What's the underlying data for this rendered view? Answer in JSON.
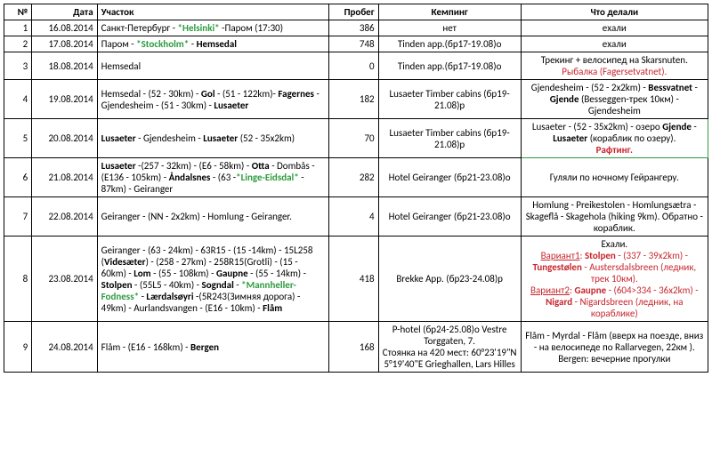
{
  "headers": {
    "num": "№",
    "date": "Дата",
    "section": "Участок",
    "mileage": "Пробег",
    "camping": "Кемпинг",
    "activity": "Что делали"
  },
  "colors": {
    "green": "#2e9b3f",
    "red": "#c7262d",
    "black": "#000000",
    "border": "#000000",
    "highlight_border": "#2e9b3f"
  },
  "rows": [
    {
      "num": "1",
      "date": "16.08.2014",
      "section": [
        {
          "t": "Санкт-Петербург - "
        },
        {
          "t": "*Helsinki*",
          "c": "green",
          "b": true
        },
        {
          "t": " -Паром (17:30)"
        }
      ],
      "mileage": "386",
      "camping": [
        {
          "t": "нет"
        }
      ],
      "activity": [
        {
          "t": "ехали"
        }
      ]
    },
    {
      "num": "2",
      "date": "17.08.2014",
      "section": [
        {
          "t": "Паром - "
        },
        {
          "t": "*Stockholm*",
          "c": "green",
          "b": true
        },
        {
          "t": "  - ",
          "b": false
        },
        {
          "t": "Hemsedal",
          "b": true
        }
      ],
      "mileage": "748",
      "camping": [
        {
          "t": "Tinden app.(бр17-19.08)о"
        }
      ],
      "activity": [
        {
          "t": "ехали"
        }
      ]
    },
    {
      "num": "3",
      "date": "18.08.2014",
      "section": [
        {
          "t": "Hemsedal"
        }
      ],
      "mileage": "0",
      "camping": [
        {
          "t": "Tinden app.(бр17-19.08)о"
        }
      ],
      "activity": [
        {
          "t": "Трекинг + велосипед на Skarsnuten."
        },
        {
          "br": true
        },
        {
          "t": "Рыбалка (Fagersetvatnet).",
          "c": "red"
        }
      ]
    },
    {
      "num": "4",
      "date": "19.08.2014",
      "section": [
        {
          "t": "Hemsedal - (52 - 30km) - "
        },
        {
          "t": "Gol",
          "b": true
        },
        {
          "t": " - (51 - 122km)- "
        },
        {
          "t": "Fagernes",
          "b": true
        },
        {
          "t": " - Gjendesheim - (51 - 30km) - "
        },
        {
          "t": "Lusaeter",
          "b": true
        }
      ],
      "mileage": "182",
      "camping": [
        {
          "t": "Lusaeter Timber cabins (бр19-21.08)р"
        }
      ],
      "activity": [
        {
          "t": "Gjendesheim - (52 - 2x2km) - "
        },
        {
          "t": "Bessvatnet",
          "b": true
        },
        {
          "t": " - "
        },
        {
          "t": "Gjende",
          "b": true
        },
        {
          "t": " (Besseggen-трек 10км) - Gjendesheim"
        }
      ]
    },
    {
      "num": "5",
      "date": "20.08.2014",
      "highlight": true,
      "section": [
        {
          "t": "Lusaeter",
          "b": true
        },
        {
          "t": " - Gjendesheim - "
        },
        {
          "t": "Lusaeter",
          "b": true
        },
        {
          "t": "  (52 - 35x2km)"
        }
      ],
      "mileage": "70",
      "camping": [
        {
          "t": "Lusaeter Timber cabins (бр19-21.08)р"
        }
      ],
      "activity": [
        {
          "t": "Lusaeter - (52 - 35x2km) -  озеро "
        },
        {
          "t": "Gjende",
          "b": true
        },
        {
          "t": " - "
        },
        {
          "t": "Lusaeter",
          "b": true
        },
        {
          "t": " (кораблик по озеру)."
        },
        {
          "br": true
        },
        {
          "t": "Рафтинг.",
          "c": "red",
          "b": true
        }
      ]
    },
    {
      "num": "6",
      "date": "21.08.2014",
      "section": [
        {
          "t": "Lusaeter",
          "b": true
        },
        {
          "t": " -(257 - 32km) - (E6 - 58km) - "
        },
        {
          "t": "Otta",
          "b": true
        },
        {
          "t": " - Dombås - (E136 - 105km) - "
        },
        {
          "t": "Åndalsnes",
          "b": true
        },
        {
          "t": " - (63 -"
        },
        {
          "t": "*Linge-Eidsdal*",
          "c": "green",
          "b": true
        },
        {
          "t": " - 87km) - Geiranger"
        }
      ],
      "mileage": "282",
      "camping": [
        {
          "t": "Hotel Geiranger (бр21-23.08)о"
        }
      ],
      "activity": [
        {
          "t": "Гуляли по ночному Гейрангеру."
        }
      ]
    },
    {
      "num": "7",
      "date": "22.08.2014",
      "section": [
        {
          "t": "Geiranger - (NN - 2x2km) - Homlung - Geiranger."
        }
      ],
      "mileage": "4",
      "camping": [
        {
          "t": "Hotel Geiranger (бр21-23.08)о"
        }
      ],
      "activity": [
        {
          "t": "Homlung - Preikestolen - Homlungsætra -  Skageflå - Skagehola (hiking 9km). Обратно - кораблик."
        }
      ]
    },
    {
      "num": "8",
      "date": "23.08.2014",
      "section": [
        {
          "t": "Geiranger -  (63 - 24km) - 63R15 -  (15 -14km) -  15L258 ("
        },
        {
          "t": "Videsæter",
          "b": true
        },
        {
          "t": ") - (258 - 27km) -  258R15(Grotli) - (15 - 60km) - "
        },
        {
          "t": "Lom",
          "b": true
        },
        {
          "t": "  - (55 - 108km) - "
        },
        {
          "t": "Gaupne",
          "b": true
        },
        {
          "t": " - (55 - 14km) - "
        },
        {
          "t": "Stolpen",
          "b": true
        },
        {
          "t": " - (55L5 - 40km) - "
        },
        {
          "t": "Sogndal",
          "b": true
        },
        {
          "t": " - "
        },
        {
          "t": "*Mannheller-Fodness*",
          "c": "green",
          "b": true
        },
        {
          "t": " - "
        },
        {
          "t": "Lærdalsøyri",
          "b": true
        },
        {
          "t": " -(5R243(Зимняя дорога) - 49km) - Aurlandsvangen - (E16 - 10km) - "
        },
        {
          "t": "Flåm",
          "b": true
        }
      ],
      "mileage": "418",
      "camping": [
        {
          "t": "Brekke App. (бр23-24.08)р"
        }
      ],
      "activity": [
        {
          "t": "Ехали."
        },
        {
          "br": true
        },
        {
          "t": "Вариант1",
          "c": "red",
          "u": true
        },
        {
          "t": ": ",
          "c": "red"
        },
        {
          "t": "Stolpen",
          "c": "red",
          "b": true
        },
        {
          "t": " - (337 - 39x2km) - ",
          "c": "red"
        },
        {
          "t": "Tungestølen",
          "c": "red",
          "b": true
        },
        {
          "t": " - Austersdalsbreen (ледник, трек 10км).",
          "c": "red"
        },
        {
          "br": true
        },
        {
          "t": "Вариант2",
          "c": "red",
          "u": true
        },
        {
          "t": ": ",
          "c": "red"
        },
        {
          "t": "Gaupne",
          "c": "red",
          "b": true
        },
        {
          "t": " -  (604>334 - 36x2km) - ",
          "c": "red"
        },
        {
          "t": "Nigard",
          "c": "red",
          "b": true
        },
        {
          "t": " - Nigardsbreen (ледник, на кораблике)",
          "c": "red"
        }
      ]
    },
    {
      "num": "9",
      "date": "24.08.2014",
      "section": [
        {
          "t": "Flåm - (E16 - 168km) - "
        },
        {
          "t": "Bergen",
          "b": true
        }
      ],
      "mileage": "168",
      "camping": [
        {
          "t": "P-hotel (бр24-25.08)о Vestre Torggaten, 7."
        },
        {
          "br": true
        },
        {
          "t": "Стоянка на 420 мест: 60°23'19\"N   5°19'40\"E Grieghallen, Lars Hilles"
        }
      ],
      "activity": [
        {
          "t": "Flåm - Myrdal - Flåm (вверх на поезде, вниз - на велосипеде по Rallarvegen, 22км )."
        },
        {
          "br": true
        },
        {
          "t": "Bergen: вечерние прогулки"
        }
      ]
    }
  ]
}
